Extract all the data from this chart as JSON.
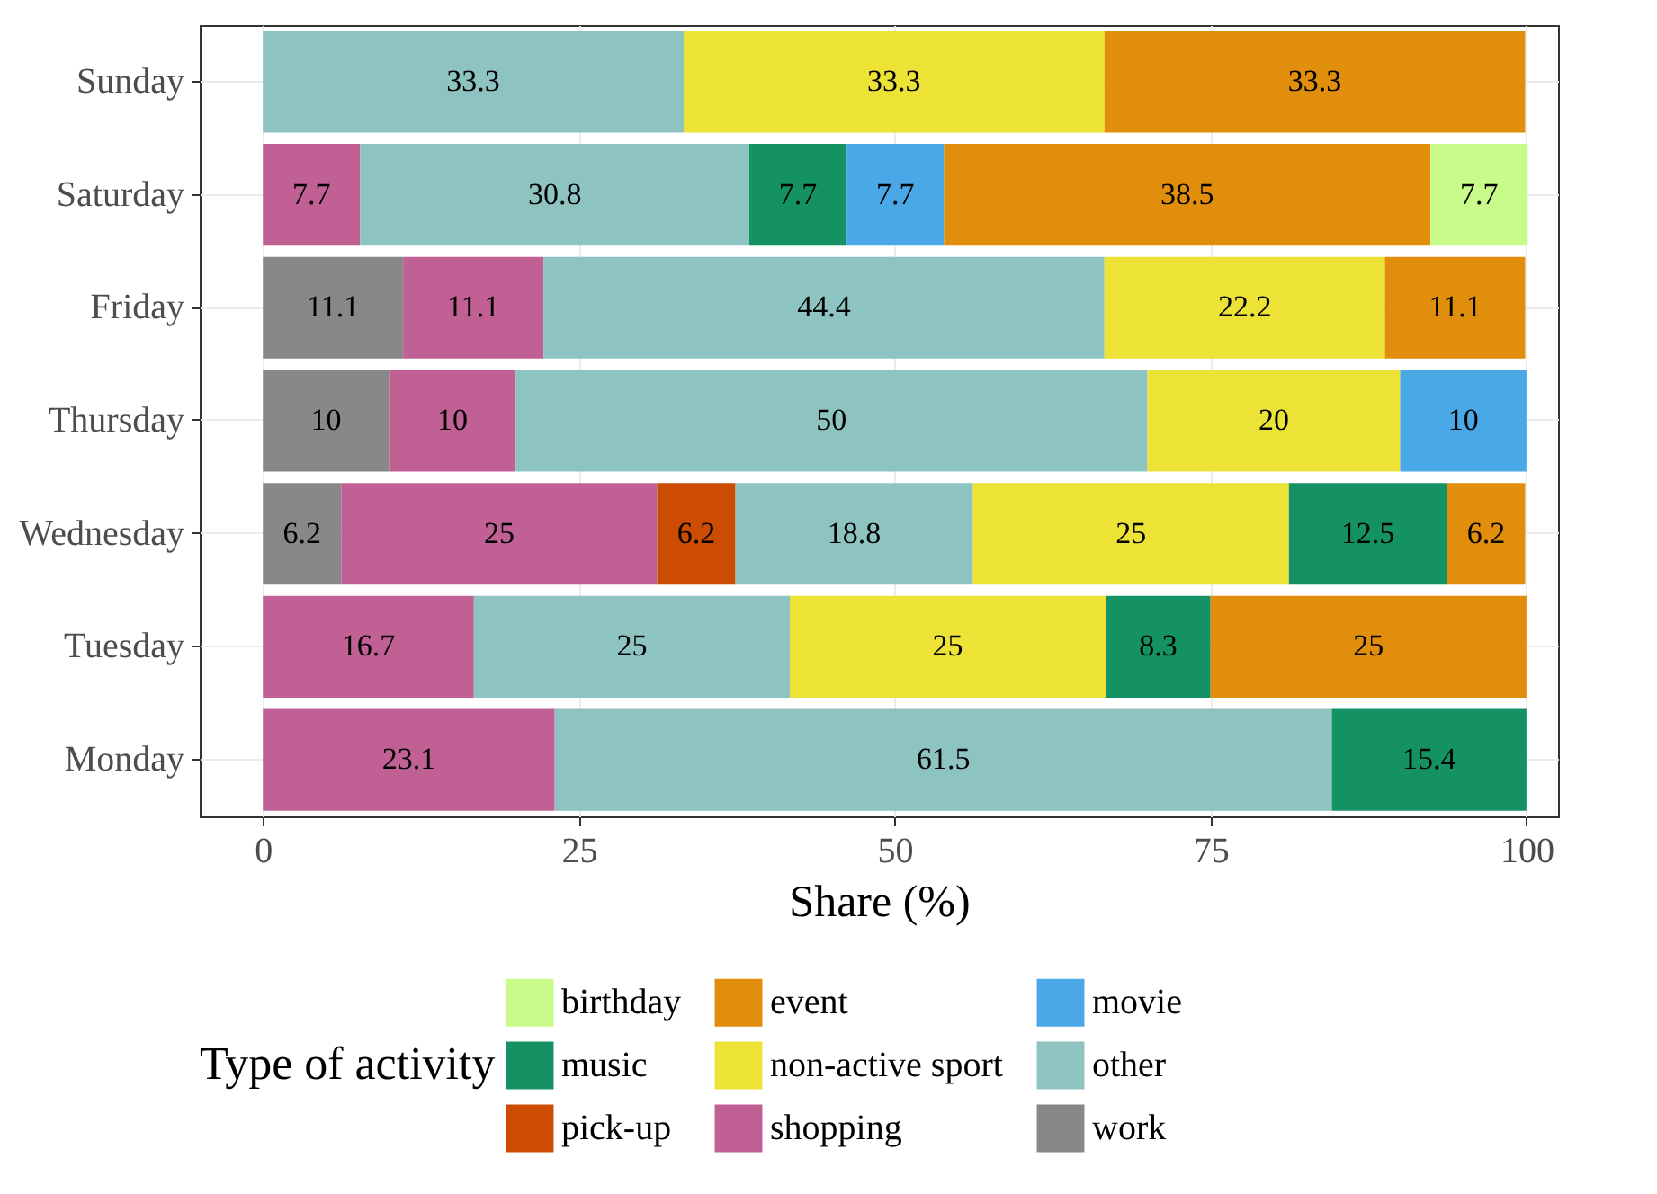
{
  "chart_data": {
    "type": "bar",
    "orientation": "horizontal",
    "stacked": true,
    "xlabel": "Share (%)",
    "legend_title": "Type of activity",
    "legend": "bottom",
    "grid": true,
    "data_labels": true,
    "categories": [
      "Sunday",
      "Saturday",
      "Friday",
      "Thursday",
      "Wednesday",
      "Tuesday",
      "Monday"
    ],
    "xlim": [
      -5,
      102.5
    ],
    "xticks": [
      0,
      25,
      50,
      75,
      100
    ],
    "series": [
      {
        "name": "work",
        "color": "#888888",
        "values": [
          null,
          null,
          11.1,
          10,
          6.2,
          null,
          null
        ]
      },
      {
        "name": "shopping",
        "color": "#c06094",
        "values": [
          null,
          7.7,
          11.1,
          10,
          25,
          16.7,
          23.1
        ]
      },
      {
        "name": "pick-up",
        "color": "#cc4c02",
        "values": [
          null,
          null,
          null,
          null,
          6.2,
          null,
          null
        ]
      },
      {
        "name": "other",
        "color": "#8dc3c1",
        "values": [
          33.3,
          30.8,
          44.4,
          50,
          18.8,
          25,
          61.5
        ]
      },
      {
        "name": "non-active sport",
        "color": "#ede236",
        "values": [
          33.3,
          null,
          22.2,
          20,
          25,
          25,
          null
        ]
      },
      {
        "name": "music",
        "color": "#159264",
        "values": [
          null,
          7.7,
          null,
          null,
          12.5,
          8.3,
          15.4
        ]
      },
      {
        "name": "movie",
        "color": "#4aa8e6",
        "values": [
          null,
          7.7,
          null,
          10,
          null,
          null,
          null
        ]
      },
      {
        "name": "event",
        "color": "#e08e0b",
        "values": [
          33.3,
          38.5,
          11.1,
          null,
          6.2,
          25,
          null
        ]
      },
      {
        "name": "birthday",
        "color": "#c9fb8a",
        "values": [
          null,
          7.7,
          null,
          null,
          null,
          null,
          null
        ]
      }
    ]
  }
}
